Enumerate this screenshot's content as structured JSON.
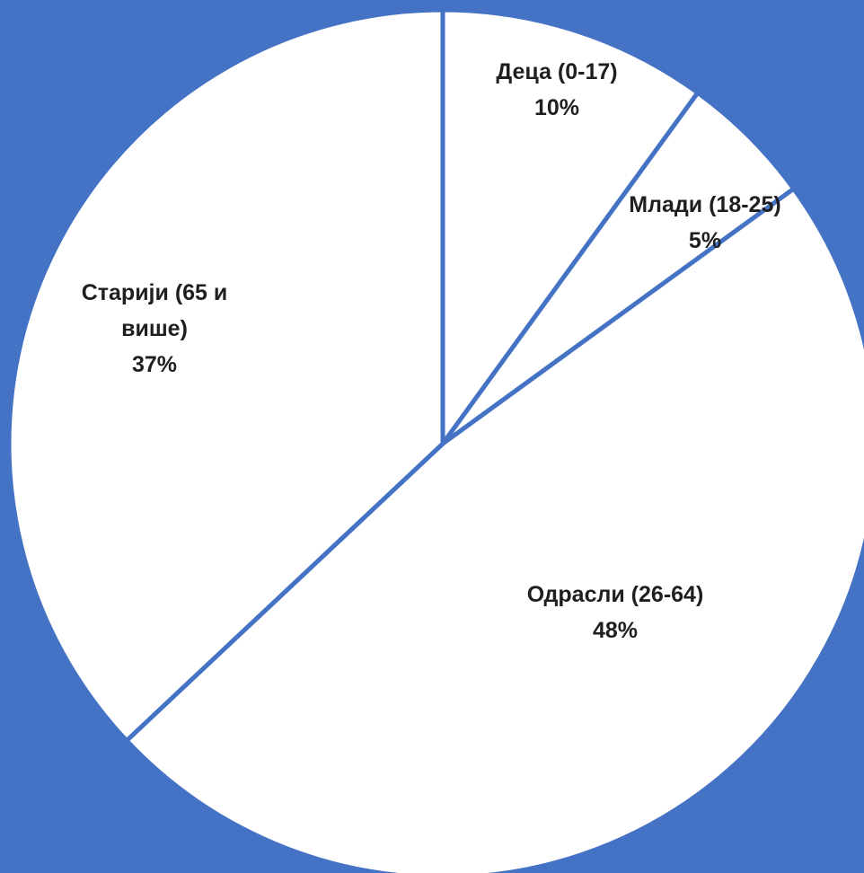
{
  "chart_data": {
    "type": "pie",
    "start": "12 o'clock",
    "direction": "clockwise",
    "slices": [
      {
        "label": "Деца (0-17)",
        "label_lines": [
          "Деца (0-17)"
        ],
        "value_label": "10%",
        "value": 10
      },
      {
        "label": "Млади (18-25)",
        "label_lines": [
          "Млади (18-25)"
        ],
        "value_label": "5%",
        "value": 5
      },
      {
        "label": "Одрасли (26-64)",
        "label_lines": [
          "Одрасли (26-64)"
        ],
        "value_label": "48%",
        "value": 48
      },
      {
        "label": "Старији (65 и више)",
        "label_lines": [
          "Старији (65 и",
          "више)"
        ],
        "value_label": "37%",
        "value": 37
      }
    ]
  },
  "colors": {
    "background": "#4472c4",
    "slice_fill": "#ffffff",
    "slice_border": "#4472c4",
    "label_text": "#1f1f1f"
  }
}
